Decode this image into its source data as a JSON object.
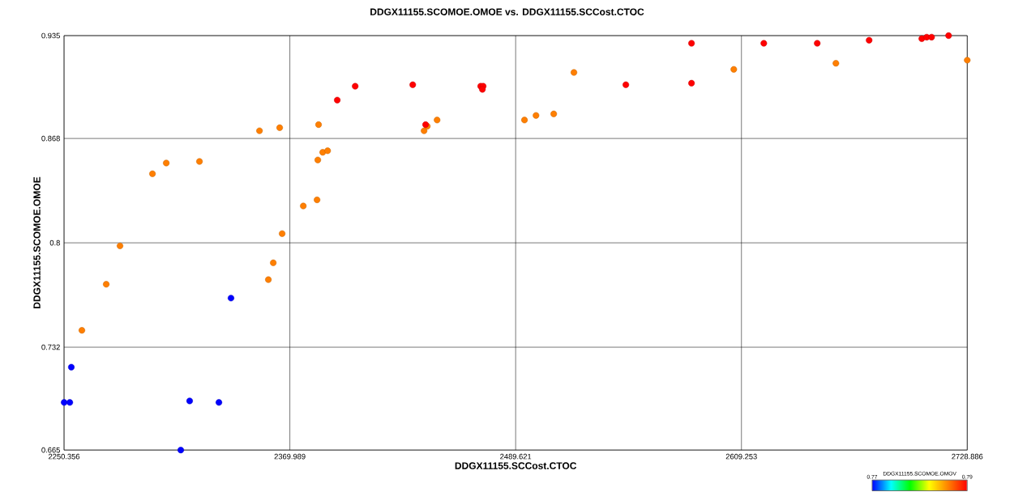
{
  "chart_data": {
    "type": "scatter",
    "title": "DDGX11155.SCOMOE.OMOE vs. DDGX11155.SCCost.CTOC",
    "xlabel": "DDGX11155.SCCost.CTOC",
    "ylabel": "DDGX11155.SCOMOE.OMOE",
    "clabel": "DDGX11155.SCOMOE.OMOV",
    "x": [
      2250.4,
      2253.4,
      2254.2,
      2316.9,
      2332.4,
      2312.2,
      2338.8,
      2259.8,
      2272.7,
      2280.0,
      2297.2,
      2304.5,
      2322.1,
      2353.9,
      2364.6,
      2358.6,
      2361.2,
      2365.9,
      2377.1,
      2384.4,
      2384.8,
      2387.4,
      2390.0,
      2385.2,
      2441.1,
      2442.8,
      2448.0,
      2494.3,
      2500.4,
      2509.8,
      2520.5,
      2605.2,
      2659.3,
      2728.88,
      2395.1,
      2404.6,
      2435.1,
      2441.9,
      2471.1,
      2472.4,
      2472.0,
      2548.0,
      2582.8,
      2582.8,
      2621.1,
      2649.4,
      2676.9,
      2704.8,
      2707.4,
      2710.0,
      2719.0
    ],
    "values": [
      0.696,
      0.696,
      0.719,
      0.697,
      0.696,
      0.665,
      0.764,
      0.743,
      0.773,
      0.798,
      0.845,
      0.852,
      0.853,
      0.873,
      0.875,
      0.776,
      0.787,
      0.806,
      0.824,
      0.828,
      0.854,
      0.859,
      0.86,
      0.877,
      0.873,
      0.876,
      0.88,
      0.88,
      0.883,
      0.884,
      0.911,
      0.913,
      0.917,
      0.919,
      0.893,
      0.902,
      0.903,
      0.877,
      0.902,
      0.902,
      0.9,
      0.903,
      0.93,
      0.904,
      0.93,
      0.93,
      0.932,
      0.933,
      0.934,
      0.934,
      0.935
    ],
    "cvalues": [
      0.77,
      0.77,
      0.77,
      0.77,
      0.77,
      0.77,
      0.77,
      0.786,
      0.786,
      0.786,
      0.786,
      0.786,
      0.786,
      0.786,
      0.786,
      0.786,
      0.786,
      0.786,
      0.786,
      0.786,
      0.786,
      0.786,
      0.786,
      0.786,
      0.786,
      0.786,
      0.786,
      0.786,
      0.786,
      0.786,
      0.786,
      0.786,
      0.786,
      0.786,
      0.79,
      0.79,
      0.79,
      0.79,
      0.79,
      0.79,
      0.79,
      0.79,
      0.79,
      0.79,
      0.79,
      0.79,
      0.79,
      0.79,
      0.79,
      0.79,
      0.79
    ],
    "xlim": [
      2250.356,
      2728.886
    ],
    "ylim": [
      0.665,
      0.935
    ],
    "xticks": [
      2250.356,
      2369.989,
      2489.621,
      2609.253,
      2728.886
    ],
    "yticks": [
      0.665,
      0.732,
      0.8,
      0.868,
      0.935
    ],
    "clim": [
      0.77,
      0.79
    ],
    "cticks": [
      0.77,
      0.79
    ],
    "grid": true,
    "marker": "circle"
  }
}
